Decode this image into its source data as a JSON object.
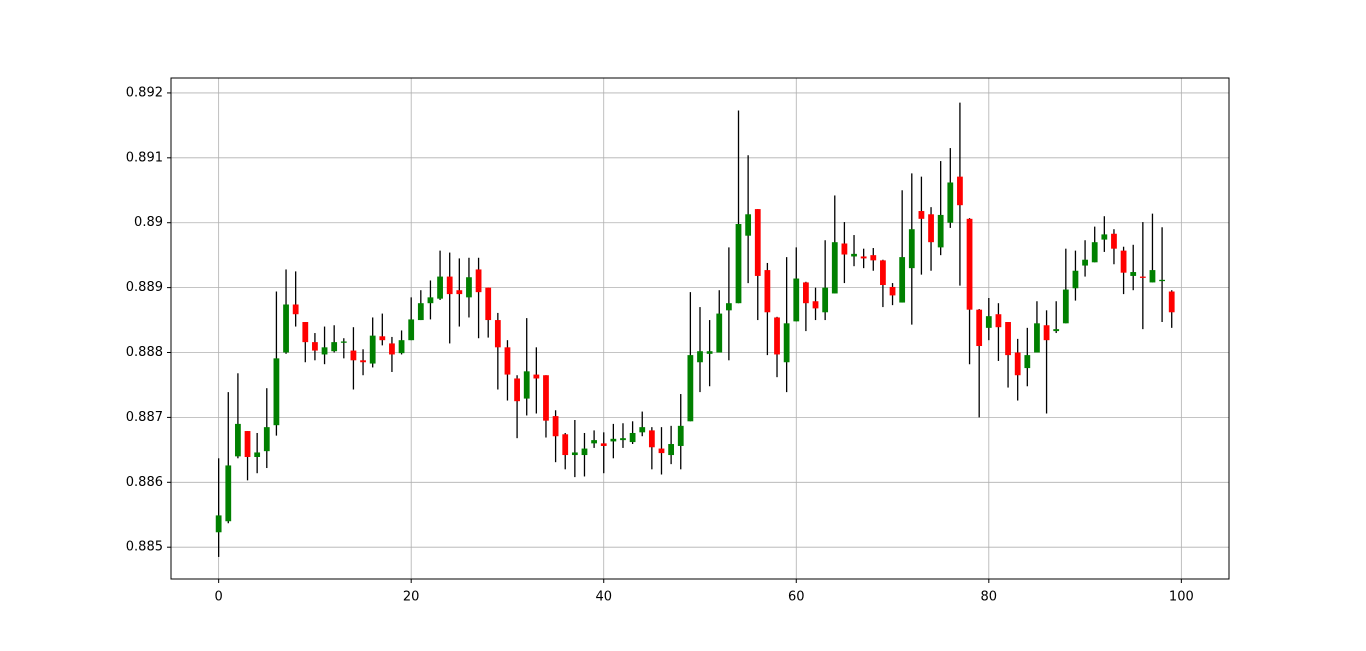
{
  "chart_data": {
    "type": "candlestick",
    "x": [
      0,
      1,
      2,
      3,
      4,
      5,
      6,
      7,
      8,
      9,
      10,
      11,
      12,
      13,
      14,
      15,
      16,
      17,
      18,
      19,
      20,
      21,
      22,
      23,
      24,
      25,
      26,
      27,
      28,
      29,
      30,
      31,
      32,
      33,
      34,
      35,
      36,
      37,
      38,
      39,
      40,
      41,
      42,
      43,
      44,
      45,
      46,
      47,
      48,
      49,
      50,
      51,
      52,
      53,
      54,
      55,
      56,
      57,
      58,
      59,
      60,
      61,
      62,
      63,
      64,
      65,
      66,
      67,
      68,
      69,
      70,
      71,
      72,
      73,
      74,
      75,
      76,
      77,
      78,
      79,
      80,
      81,
      82,
      83,
      84,
      85,
      86,
      87,
      88,
      89,
      90,
      91,
      92,
      93,
      94,
      95,
      96,
      97,
      98,
      99
    ],
    "open": [
      0.88523,
      0.8854,
      0.8864,
      0.88679,
      0.88639,
      0.88648,
      0.88688,
      0.888,
      0.88874,
      0.88847,
      0.88816,
      0.88797,
      0.88802,
      0.88815,
      0.88803,
      0.88788,
      0.88783,
      0.88825,
      0.88814,
      0.88799,
      0.88819,
      0.8885,
      0.88876,
      0.88883,
      0.88917,
      0.88896,
      0.88885,
      0.88928,
      0.889,
      0.8885,
      0.88808,
      0.8876,
      0.88729,
      0.88766,
      0.88765,
      0.88702,
      0.88674,
      0.88642,
      0.88642,
      0.8866,
      0.8866,
      0.88663,
      0.88665,
      0.88662,
      0.88677,
      0.8868,
      0.88652,
      0.88642,
      0.88656,
      0.88694,
      0.88785,
      0.88798,
      0.888,
      0.88865,
      0.88876,
      0.8898,
      0.89021,
      0.88927,
      0.88854,
      0.88785,
      0.88848,
      0.88908,
      0.88879,
      0.88862,
      0.88891,
      0.88968,
      0.88948,
      0.88948,
      0.8895,
      0.88942,
      0.88901,
      0.88877,
      0.8893,
      0.89018,
      0.89013,
      0.88962,
      0.89,
      0.89071,
      0.89006,
      0.88866,
      0.88838,
      0.88859,
      0.88847,
      0.888,
      0.88776,
      0.888,
      0.88842,
      0.88833,
      0.88845,
      0.88899,
      0.88934,
      0.88939,
      0.88974,
      0.88983,
      0.88957,
      0.88918,
      0.88917,
      0.88908,
      0.8891,
      0.88894
    ],
    "high": [
      0.88637,
      0.88739,
      0.88768,
      0.88679,
      0.88676,
      0.88745,
      0.88894,
      0.88928,
      0.88925,
      0.88847,
      0.8883,
      0.8884,
      0.88842,
      0.88822,
      0.88839,
      0.88805,
      0.88854,
      0.8886,
      0.88824,
      0.88834,
      0.88885,
      0.88896,
      0.88911,
      0.88957,
      0.88954,
      0.88945,
      0.88946,
      0.88946,
      0.889,
      0.88861,
      0.88819,
      0.88765,
      0.88853,
      0.88808,
      0.88765,
      0.88711,
      0.88676,
      0.88696,
      0.88676,
      0.8868,
      0.88677,
      0.8869,
      0.88691,
      0.88694,
      0.88709,
      0.88685,
      0.88685,
      0.88687,
      0.88736,
      0.88893,
      0.8887,
      0.8885,
      0.88896,
      0.88962,
      0.89173,
      0.89104,
      0.89021,
      0.88938,
      0.88855,
      0.88947,
      0.88962,
      0.88909,
      0.889,
      0.88973,
      0.89042,
      0.89001,
      0.88981,
      0.8896,
      0.88961,
      0.88943,
      0.88907,
      0.8905,
      0.89076,
      0.89071,
      0.89024,
      0.89095,
      0.89115,
      0.89185,
      0.89007,
      0.88867,
      0.88884,
      0.88876,
      0.88847,
      0.88821,
      0.88838,
      0.88879,
      0.88865,
      0.88879,
      0.8896,
      0.88957,
      0.88973,
      0.88994,
      0.8901,
      0.8899,
      0.88963,
      0.88966,
      0.89001,
      0.89014,
      0.88993,
      0.88896
    ],
    "low": [
      0.88485,
      0.88537,
      0.88637,
      0.88603,
      0.88614,
      0.88622,
      0.88672,
      0.88798,
      0.8884,
      0.88785,
      0.88788,
      0.88782,
      0.888,
      0.88791,
      0.88743,
      0.88765,
      0.88777,
      0.88811,
      0.8877,
      0.88797,
      0.88819,
      0.8885,
      0.88851,
      0.88881,
      0.88814,
      0.8884,
      0.88854,
      0.88822,
      0.88823,
      0.88743,
      0.88726,
      0.88668,
      0.88703,
      0.88706,
      0.88669,
      0.88631,
      0.8862,
      0.88608,
      0.88609,
      0.88653,
      0.88614,
      0.88637,
      0.88653,
      0.88659,
      0.88671,
      0.8862,
      0.88612,
      0.88628,
      0.8862,
      0.88694,
      0.88739,
      0.88748,
      0.888,
      0.88788,
      0.88876,
      0.88907,
      0.8885,
      0.88796,
      0.88762,
      0.88739,
      0.88848,
      0.88833,
      0.8885,
      0.8885,
      0.88891,
      0.88907,
      0.88933,
      0.8893,
      0.88926,
      0.8887,
      0.88873,
      0.88877,
      0.88843,
      0.8892,
      0.88926,
      0.8895,
      0.88992,
      0.88903,
      0.88782,
      0.887,
      0.88819,
      0.88787,
      0.88746,
      0.88726,
      0.88748,
      0.888,
      0.88706,
      0.8883,
      0.88845,
      0.8888,
      0.88917,
      0.88939,
      0.88955,
      0.88936,
      0.8889,
      0.88896,
      0.88836,
      0.88908,
      0.88847,
      0.88838
    ],
    "close": [
      0.88549,
      0.88626,
      0.8869,
      0.88639,
      0.88646,
      0.88685,
      0.88791,
      0.88874,
      0.88859,
      0.88816,
      0.88803,
      0.88808,
      0.88816,
      0.88817,
      0.88788,
      0.88785,
      0.88826,
      0.88819,
      0.88797,
      0.88819,
      0.88851,
      0.88876,
      0.88885,
      0.88917,
      0.8889,
      0.8889,
      0.88916,
      0.88893,
      0.8885,
      0.88808,
      0.88766,
      0.88725,
      0.88771,
      0.8876,
      0.88695,
      0.88671,
      0.88642,
      0.88646,
      0.88652,
      0.88665,
      0.88656,
      0.88667,
      0.88668,
      0.88676,
      0.88685,
      0.88654,
      0.88645,
      0.88659,
      0.88687,
      0.88796,
      0.88802,
      0.88802,
      0.8886,
      0.88876,
      0.88998,
      0.89013,
      0.88918,
      0.88862,
      0.88797,
      0.88845,
      0.88914,
      0.88876,
      0.88868,
      0.889,
      0.8897,
      0.88951,
      0.88952,
      0.88945,
      0.88942,
      0.88904,
      0.88888,
      0.88947,
      0.8899,
      0.89006,
      0.8897,
      0.89012,
      0.89062,
      0.89027,
      0.88866,
      0.8881,
      0.88856,
      0.88839,
      0.88796,
      0.88765,
      0.88796,
      0.88845,
      0.88819,
      0.88836,
      0.88897,
      0.88926,
      0.88943,
      0.8897,
      0.88982,
      0.8896,
      0.88923,
      0.88924,
      0.88915,
      0.88927,
      0.88912,
      0.88862
    ],
    "up_color": "green",
    "down_color": "red",
    "wick_color": "black",
    "xlim": [
      -4.95,
      104.95
    ],
    "xticks": [
      0,
      20,
      40,
      60,
      80,
      100
    ],
    "ylim": [
      0.88451,
      0.89223
    ],
    "yticks": [
      0.885,
      0.886,
      0.887,
      0.888,
      0.889,
      0.89,
      0.891,
      0.892
    ],
    "grid": true
  }
}
